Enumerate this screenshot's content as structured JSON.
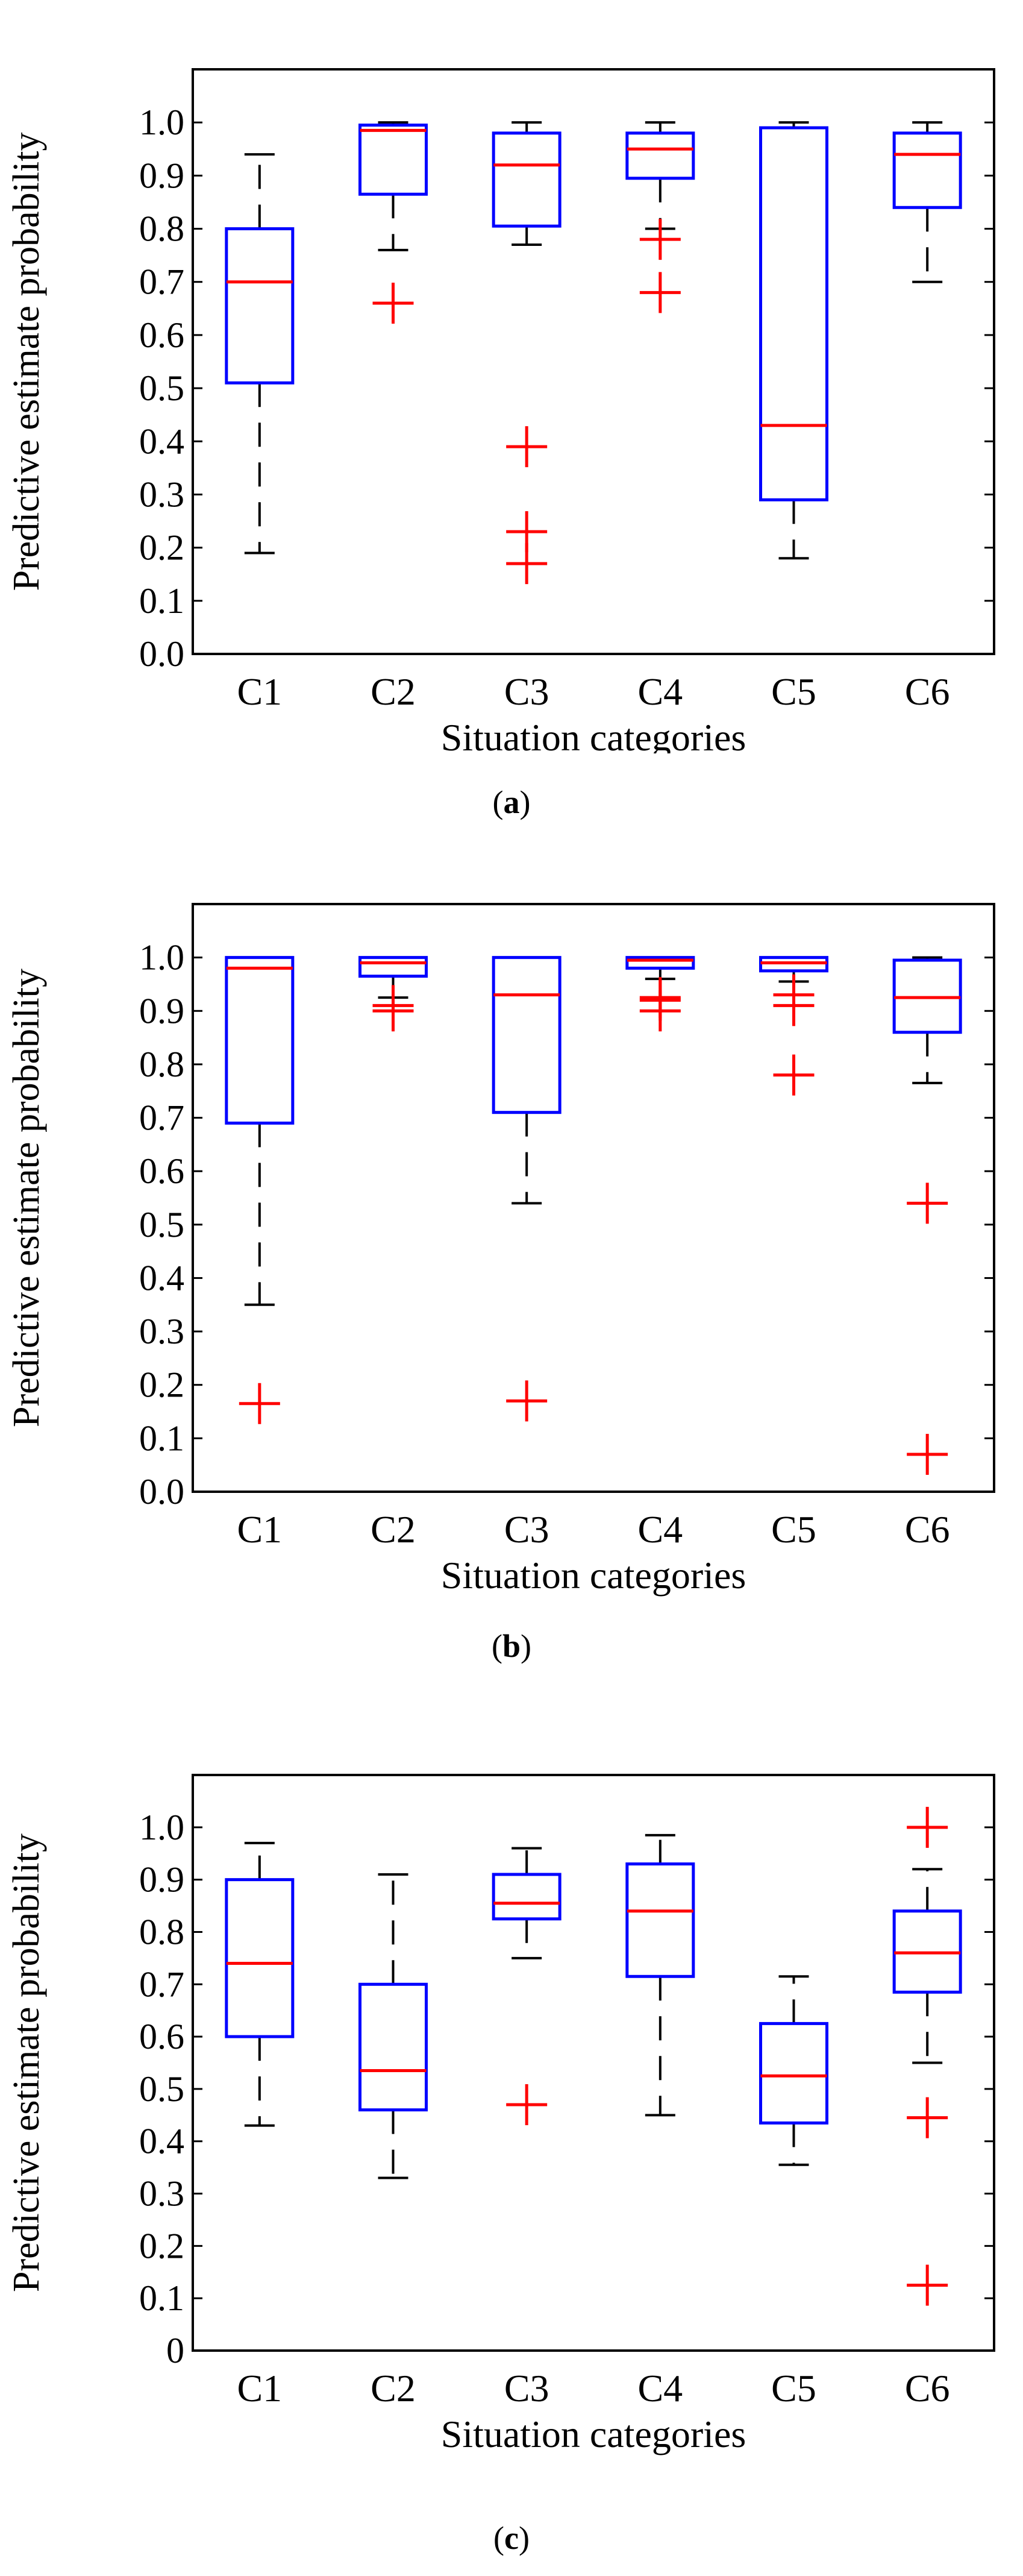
{
  "chart_data": [
    {
      "type": "boxplot",
      "panel_label": "a",
      "ylabel": "Predictive estimate probability",
      "xlabel": "Situation categories",
      "ylim": [
        0,
        1.1
      ],
      "y_ticks": [
        "0.0",
        "0.1",
        "0.2",
        "0.3",
        "0.4",
        "0.5",
        "0.6",
        "0.7",
        "0.8",
        "0.9",
        "1.0"
      ],
      "categories": [
        "C1",
        "C2",
        "C3",
        "C4",
        "C5",
        "C6"
      ],
      "boxes": [
        {
          "category": "C1",
          "whisker_low": 0.19,
          "q1": 0.51,
          "median": 0.7,
          "q3": 0.8,
          "whisker_high": 0.94,
          "outliers": []
        },
        {
          "category": "C2",
          "whisker_low": 0.76,
          "q1": 0.865,
          "median": 0.985,
          "q3": 0.995,
          "whisker_high": 1.0,
          "outliers": [
            0.66
          ]
        },
        {
          "category": "C3",
          "whisker_low": 0.77,
          "q1": 0.805,
          "median": 0.92,
          "q3": 0.98,
          "whisker_high": 1.0,
          "outliers": [
            0.39,
            0.23,
            0.17
          ]
        },
        {
          "category": "C4",
          "whisker_low": 0.8,
          "q1": 0.895,
          "median": 0.95,
          "q3": 0.98,
          "whisker_high": 1.0,
          "outliers": [
            0.78,
            0.68
          ]
        },
        {
          "category": "C5",
          "whisker_low": 0.18,
          "q1": 0.29,
          "median": 0.43,
          "q3": 0.99,
          "whisker_high": 1.0,
          "outliers": []
        },
        {
          "category": "C6",
          "whisker_low": 0.7,
          "q1": 0.84,
          "median": 0.94,
          "q3": 0.98,
          "whisker_high": 1.0,
          "outliers": []
        }
      ]
    },
    {
      "type": "boxplot",
      "panel_label": "b",
      "ylabel": "Predictive estimate probability",
      "xlabel": "Situation categories",
      "ylim": [
        0,
        1.1
      ],
      "y_ticks": [
        "0.0",
        "0.1",
        "0.2",
        "0.3",
        "0.4",
        "0.5",
        "0.6",
        "0.7",
        "0.8",
        "0.9",
        "1.0"
      ],
      "categories": [
        "C1",
        "C2",
        "C3",
        "C4",
        "C5",
        "C6"
      ],
      "boxes": [
        {
          "category": "C1",
          "whisker_low": 0.35,
          "q1": 0.69,
          "median": 0.98,
          "q3": 1.0,
          "whisker_high": 1.0,
          "outliers": [
            0.165
          ]
        },
        {
          "category": "C2",
          "whisker_low": 0.925,
          "q1": 0.965,
          "median": 0.99,
          "q3": 1.0,
          "whisker_high": 1.0,
          "outliers": [
            0.91,
            0.9
          ]
        },
        {
          "category": "C3",
          "whisker_low": 0.54,
          "q1": 0.71,
          "median": 0.93,
          "q3": 1.0,
          "whisker_high": 1.0,
          "outliers": [
            0.17
          ]
        },
        {
          "category": "C4",
          "whisker_low": 0.96,
          "q1": 0.98,
          "median": 0.995,
          "q3": 1.0,
          "whisker_high": 1.0,
          "outliers": [
            0.925,
            0.92,
            0.9
          ]
        },
        {
          "category": "C5",
          "whisker_low": 0.955,
          "q1": 0.975,
          "median": 0.99,
          "q3": 1.0,
          "whisker_high": 1.0,
          "outliers": [
            0.93,
            0.91,
            0.78
          ]
        },
        {
          "category": "C6",
          "whisker_low": 0.765,
          "q1": 0.86,
          "median": 0.925,
          "q3": 0.995,
          "whisker_high": 1.0,
          "outliers": [
            0.54,
            0.07
          ]
        }
      ]
    },
    {
      "type": "boxplot",
      "panel_label": "c",
      "ylabel": "Predictive estimate probability",
      "xlabel": "Situation categories",
      "ylim": [
        0,
        1.1
      ],
      "y_ticks": [
        "0",
        "0.1",
        "0.2",
        "0.3",
        "0.4",
        "0.5",
        "0.6",
        "0.7",
        "0.8",
        "0.9",
        "1.0"
      ],
      "categories": [
        "C1",
        "C2",
        "C3",
        "C4",
        "C5",
        "C6"
      ],
      "boxes": [
        {
          "category": "C1",
          "whisker_low": 0.43,
          "q1": 0.6,
          "median": 0.74,
          "q3": 0.9,
          "whisker_high": 0.97,
          "outliers": []
        },
        {
          "category": "C2",
          "whisker_low": 0.33,
          "q1": 0.46,
          "median": 0.535,
          "q3": 0.7,
          "whisker_high": 0.91,
          "outliers": []
        },
        {
          "category": "C3",
          "whisker_low": 0.75,
          "q1": 0.825,
          "median": 0.855,
          "q3": 0.91,
          "whisker_high": 0.96,
          "outliers": [
            0.47
          ]
        },
        {
          "category": "C4",
          "whisker_low": 0.45,
          "q1": 0.715,
          "median": 0.84,
          "q3": 0.93,
          "whisker_high": 0.985,
          "outliers": []
        },
        {
          "category": "C5",
          "whisker_low": 0.355,
          "q1": 0.435,
          "median": 0.525,
          "q3": 0.625,
          "whisker_high": 0.715,
          "outliers": []
        },
        {
          "category": "C6",
          "whisker_low": 0.55,
          "q1": 0.685,
          "median": 0.76,
          "q3": 0.84,
          "whisker_high": 0.92,
          "outliers": [
            1.0,
            0.445,
            0.125
          ]
        }
      ]
    }
  ],
  "colors": {
    "box": "#0000ff",
    "median": "#ff0000",
    "whisker": "#000000",
    "outlier": "#ff0000",
    "axis": "#000000"
  }
}
